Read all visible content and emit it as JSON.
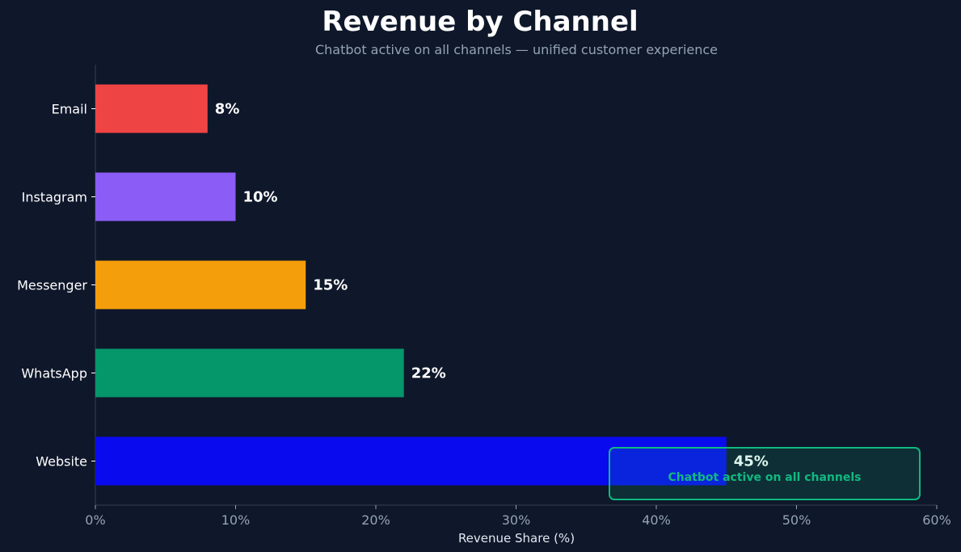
{
  "chart_data": {
    "type": "bar",
    "orientation": "horizontal",
    "title": "Revenue by Channel",
    "subtitle": "Chatbot active on all channels — unified customer experience",
    "xlabel": "Revenue Share (%)",
    "ylabel": "",
    "xlim": [
      0,
      60
    ],
    "xticks": [
      0,
      10,
      20,
      30,
      40,
      50,
      60
    ],
    "xtick_labels": [
      "0%",
      "10%",
      "20%",
      "30%",
      "40%",
      "50%",
      "60%"
    ],
    "categories": [
      "Website",
      "WhatsApp",
      "Messenger",
      "Instagram",
      "Email"
    ],
    "values": [
      45,
      22,
      15,
      10,
      8
    ],
    "value_labels": [
      "45%",
      "22%",
      "15%",
      "10%",
      "8%"
    ],
    "colors": [
      "#0a0aef",
      "#059669",
      "#f59e0b",
      "#8b5cf6",
      "#ef4444"
    ],
    "grid": false,
    "annotation": {
      "text": "Chatbot active on all channels",
      "color": "#10b981"
    },
    "background": "#0f172a"
  }
}
